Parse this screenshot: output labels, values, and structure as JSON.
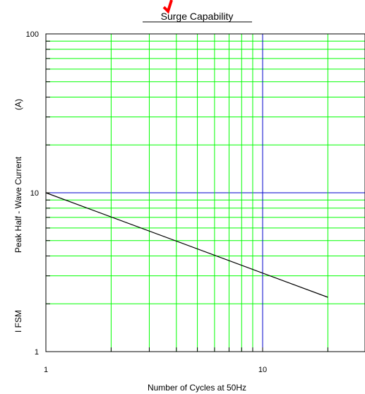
{
  "chart_data": {
    "type": "line",
    "title": "Surge Capability",
    "xlabel": "Number of Cycles at 50Hz",
    "ylabel_parts": [
      "I FSM",
      "Peak Half - Wave Current",
      "(A)"
    ],
    "x_scale": "log",
    "y_scale": "log",
    "xlim": [
      1,
      30
    ],
    "ylim": [
      1,
      100
    ],
    "x_tick_labels": [
      {
        "value": 1,
        "label": "1"
      },
      {
        "value": 10,
        "label": "10"
      }
    ],
    "y_tick_labels": [
      {
        "value": 1,
        "label": "1"
      },
      {
        "value": 10,
        "label": "10"
      },
      {
        "value": 100,
        "label": "100"
      }
    ],
    "grid": true,
    "series": [
      {
        "x": [
          1,
          20
        ],
        "y": [
          10,
          2.2
        ]
      }
    ],
    "colors": {
      "minor_grid": "#00ff00",
      "major_grid": "#0000cc",
      "line": "#000000",
      "mark": "#ff0000"
    }
  }
}
